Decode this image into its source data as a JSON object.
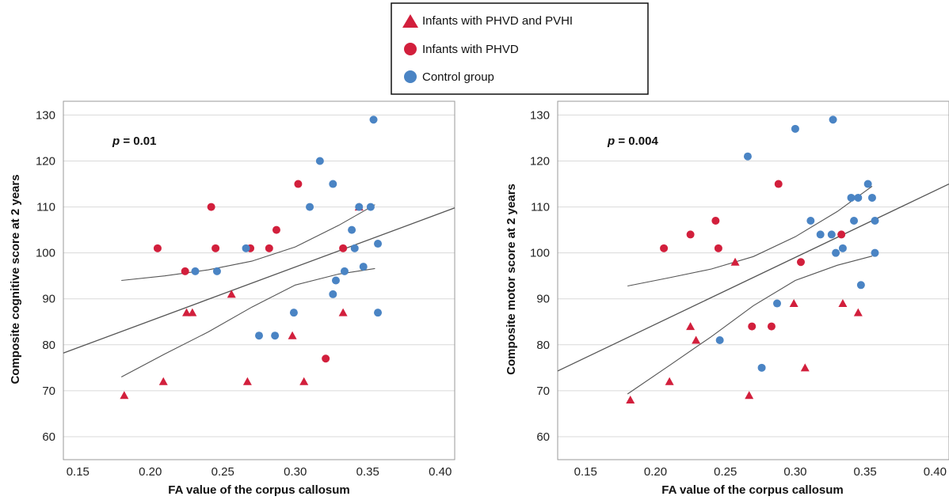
{
  "legend": [
    {
      "label": "Infants with PHVD and PVHI",
      "marker": "triangle",
      "color": "#d21f3c"
    },
    {
      "label": "Infants with PHVD",
      "marker": "circle",
      "color": "#d21f3c"
    },
    {
      "label": "Control group",
      "marker": "circle",
      "color": "#4a84c4"
    }
  ],
  "chart_data": [
    {
      "type": "scatter",
      "xlabel": "FA value of the corpus callosum",
      "ylabel": "Composite cognitive score at 2 years",
      "annotation_prefix": "p",
      "annotation_value": " = 0.01",
      "xlim": [
        0.14,
        0.41
      ],
      "ylim": [
        55,
        133
      ],
      "xticks": [
        0.15,
        0.2,
        0.25,
        0.3,
        0.35,
        0.4
      ],
      "xtick_labels": [
        "0.15",
        "0.20",
        "0.25",
        "0.30",
        "0.35",
        "0.40"
      ],
      "yticks": [
        60,
        70,
        80,
        90,
        100,
        110,
        120,
        130
      ],
      "ytick_labels": [
        "60",
        "70",
        "80",
        "90",
        "100",
        "110",
        "120",
        "130"
      ],
      "grid": true,
      "series": [
        {
          "name": "Infants with PHVD and PVHI",
          "marker": "triangle",
          "color": "#d21f3c",
          "x": [
            0.182,
            0.209,
            0.225,
            0.229,
            0.256,
            0.267,
            0.298,
            0.306,
            0.333,
            0.344
          ],
          "y": [
            69,
            72,
            87,
            87,
            91,
            72,
            82,
            72,
            87,
            110
          ]
        },
        {
          "name": "Infants with PHVD",
          "marker": "circle",
          "color": "#d21f3c",
          "x": [
            0.205,
            0.224,
            0.242,
            0.245,
            0.269,
            0.282,
            0.287,
            0.302,
            0.321,
            0.333
          ],
          "y": [
            101,
            96,
            110,
            101,
            101,
            101,
            105,
            115,
            77,
            101
          ]
        },
        {
          "name": "Control group",
          "marker": "circle",
          "color": "#4a84c4",
          "x": [
            0.231,
            0.246,
            0.266,
            0.275,
            0.286,
            0.299,
            0.31,
            0.317,
            0.326,
            0.326,
            0.328,
            0.334,
            0.339,
            0.341,
            0.344,
            0.347,
            0.352,
            0.354,
            0.357,
            0.357
          ],
          "y": [
            96,
            96,
            101,
            82,
            82,
            87,
            110,
            120,
            115,
            91,
            94,
            96,
            105,
            101,
            110,
            97,
            110,
            129,
            102,
            87
          ]
        }
      ],
      "fit": {
        "x": [
          0.14,
          0.41
        ],
        "y": [
          78.2,
          109.8
        ]
      },
      "ci_upper": {
        "x": [
          0.18,
          0.21,
          0.24,
          0.27,
          0.3,
          0.33,
          0.355
        ],
        "y": [
          94.0,
          95.0,
          96.3,
          98.2,
          101.3,
          106.0,
          110.5
        ]
      },
      "ci_lower": {
        "x": [
          0.18,
          0.21,
          0.24,
          0.27,
          0.3,
          0.33,
          0.355
        ],
        "y": [
          73.0,
          78.0,
          82.8,
          88.2,
          93.0,
          95.4,
          96.6
        ]
      }
    },
    {
      "type": "scatter",
      "xlabel": "FA value of the corpus callosum",
      "ylabel": "Composite motor score at 2 years",
      "annotation_prefix": "p",
      "annotation_value": " = 0.004",
      "xlim": [
        0.13,
        0.41
      ],
      "ylim": [
        55,
        133
      ],
      "xticks": [
        0.15,
        0.2,
        0.25,
        0.3,
        0.35,
        0.4
      ],
      "xtick_labels": [
        "0.15",
        "0.20",
        "0.25",
        "0.30",
        "0.35",
        "0.40"
      ],
      "yticks": [
        60,
        70,
        80,
        90,
        100,
        110,
        120,
        130
      ],
      "ytick_labels": [
        "60",
        "70",
        "80",
        "90",
        "100",
        "110",
        "120",
        "130"
      ],
      "grid": true,
      "series": [
        {
          "name": "Infants with PHVD and PVHI",
          "marker": "triangle",
          "color": "#d21f3c",
          "x": [
            0.182,
            0.21,
            0.225,
            0.229,
            0.257,
            0.267,
            0.299,
            0.307,
            0.334,
            0.345
          ],
          "y": [
            68,
            72,
            84,
            81,
            98,
            69,
            89,
            75,
            89,
            87
          ]
        },
        {
          "name": "Infants with PHVD",
          "marker": "circle",
          "color": "#d21f3c",
          "x": [
            0.206,
            0.225,
            0.243,
            0.245,
            0.269,
            0.283,
            0.288,
            0.304,
            0.333
          ],
          "y": [
            101,
            104,
            107,
            101,
            84,
            84,
            115,
            98,
            104
          ]
        },
        {
          "name": "Control group",
          "marker": "circle",
          "color": "#4a84c4",
          "x": [
            0.246,
            0.266,
            0.276,
            0.287,
            0.3,
            0.311,
            0.318,
            0.326,
            0.327,
            0.329,
            0.334,
            0.34,
            0.342,
            0.345,
            0.347,
            0.352,
            0.355,
            0.357,
            0.357
          ],
          "y": [
            81,
            121,
            75,
            89,
            127,
            107,
            104,
            104,
            129,
            100,
            101,
            112,
            107,
            112,
            93,
            115,
            112,
            107,
            100
          ]
        }
      ],
      "fit": {
        "x": [
          0.13,
          0.41
        ],
        "y": [
          74.3,
          115.0
        ]
      },
      "ci_upper": {
        "x": [
          0.18,
          0.21,
          0.24,
          0.27,
          0.3,
          0.33,
          0.355
        ],
        "y": [
          92.8,
          94.6,
          96.5,
          99.2,
          103.5,
          109.0,
          114.5
        ]
      },
      "ci_lower": {
        "x": [
          0.18,
          0.21,
          0.24,
          0.27,
          0.3,
          0.33,
          0.355
        ],
        "y": [
          69.3,
          75.5,
          81.8,
          88.5,
          94.0,
          97.3,
          99.3
        ]
      }
    }
  ]
}
